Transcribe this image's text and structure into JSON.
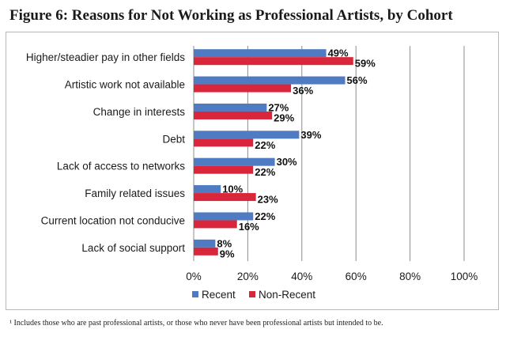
{
  "title": "Figure 6: Reasons for Not Working as Professional Artists, by Cohort",
  "footnote": "¹ Includes those who are past professional artists, or those who never have been professional artists but intended to be.",
  "colors": {
    "recent": "#4f7bc3",
    "non_recent": "#d9263a",
    "grid": "#8c8c8c"
  },
  "chart_data": {
    "type": "bar",
    "orientation": "horizontal",
    "categories": [
      "Higher/steadier pay in other fields",
      "Artistic work not available",
      "Change in interests",
      "Debt",
      "Lack of access to networks",
      "Family related issues",
      "Current location not conducive",
      "Lack of social support"
    ],
    "series": [
      {
        "name": "Recent",
        "values": [
          49,
          56,
          27,
          39,
          30,
          10,
          22,
          8
        ]
      },
      {
        "name": "Non-Recent",
        "values": [
          59,
          36,
          29,
          22,
          22,
          23,
          16,
          9
        ]
      }
    ],
    "xlim": [
      0,
      100
    ],
    "xticks": [
      0,
      20,
      40,
      60,
      80,
      100
    ],
    "value_suffix": "%",
    "grid": true,
    "legend": "bottom"
  }
}
